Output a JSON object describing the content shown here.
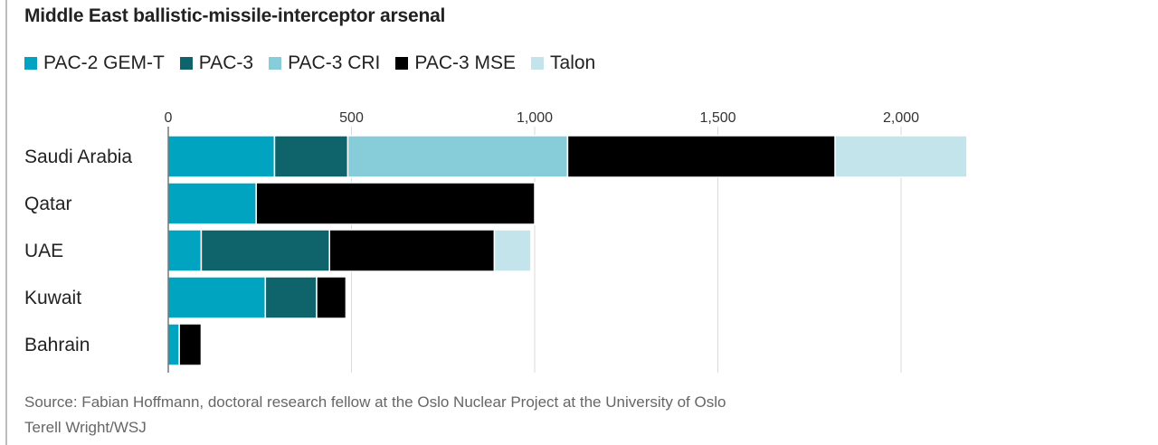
{
  "chart_data": {
    "type": "bar",
    "orientation": "horizontal",
    "stacked": true,
    "title": "Middle East ballistic-missile-interceptor arsenal",
    "categories": [
      "Saudi Arabia",
      "Qatar",
      "UAE",
      "Kuwait",
      "Bahrain"
    ],
    "series": [
      {
        "name": "PAC-2 GEM-T",
        "color": "#00a3c0",
        "values": [
          290,
          240,
          90,
          265,
          30
        ]
      },
      {
        "name": "PAC-3",
        "color": "#0f636b",
        "values": [
          200,
          0,
          350,
          140,
          0
        ]
      },
      {
        "name": "PAC-3 CRI",
        "color": "#87ccd9",
        "values": [
          600,
          0,
          0,
          0,
          0
        ]
      },
      {
        "name": "PAC-3 MSE",
        "color": "#000000",
        "values": [
          730,
          760,
          450,
          80,
          60
        ]
      },
      {
        "name": "Talon",
        "color": "#c4e4ec",
        "values": [
          360,
          0,
          100,
          0,
          0
        ]
      }
    ],
    "xlim": [
      0,
      2200
    ],
    "xticks": [
      0,
      500,
      1000,
      1500,
      2000
    ],
    "xtick_labels": [
      "0",
      "500",
      "1,000",
      "1,500",
      "2,000"
    ],
    "grid": true,
    "legend_position": "top-left"
  },
  "source": {
    "line1": "Source: Fabian Hoffmann, doctoral research fellow at the Oslo Nuclear Project at the University of Oslo",
    "line2": "Terell Wright/WSJ"
  }
}
